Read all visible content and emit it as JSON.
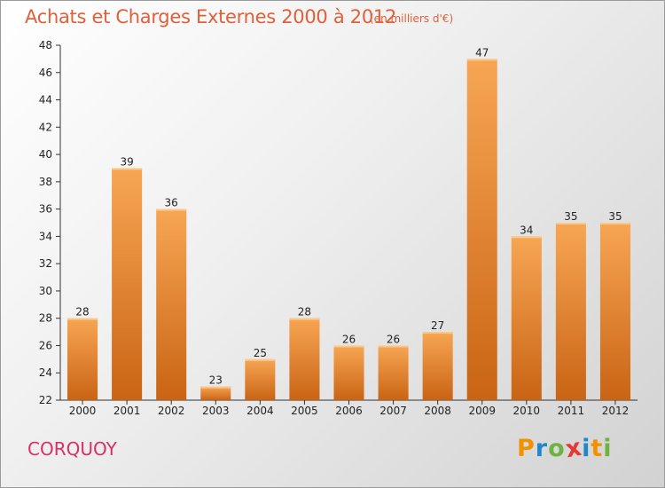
{
  "chart_data": {
    "type": "bar",
    "title": "Achats et Charges Externes 2000 à 2012",
    "unit_note": "(en milliers d'€)",
    "categories": [
      "2000",
      "2001",
      "2002",
      "2003",
      "2004",
      "2005",
      "2006",
      "2007",
      "2008",
      "2009",
      "2010",
      "2011",
      "2012"
    ],
    "values": [
      28,
      39,
      36,
      23,
      25,
      28,
      26,
      26,
      27,
      47,
      34,
      35,
      35
    ],
    "ylim": [
      22,
      48
    ],
    "yticks": [
      22,
      24,
      26,
      28,
      30,
      32,
      34,
      36,
      38,
      40,
      42,
      44,
      46,
      48
    ],
    "grid": false,
    "data_labels": true,
    "bar_color_top": "#f7a654",
    "bar_color_bottom": "#c96414"
  },
  "footer": {
    "town": "CORQUOY",
    "town_color": "#d8306a",
    "logo_letters": [
      "P",
      "r",
      "o",
      "x",
      "i",
      "t",
      "i"
    ],
    "logo_colors": [
      "#f39200",
      "#1e88c8",
      "#6cb33f",
      "#e53935",
      "#1e88c8",
      "#f39200",
      "#6cb33f"
    ]
  }
}
